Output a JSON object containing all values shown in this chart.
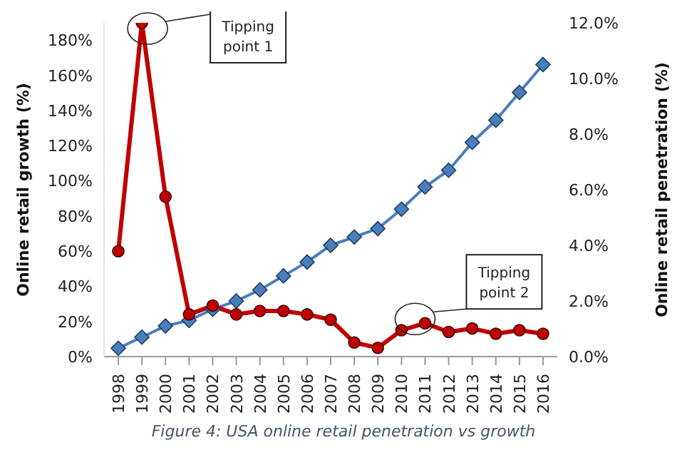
{
  "chart_data": {
    "type": "line",
    "ylabel": "Online  retail growth (%)",
    "y2label": "Online  retail penetration (%)",
    "categories": [
      "1998",
      "1999",
      "2000",
      "2001",
      "2002",
      "2003",
      "2004",
      "2005",
      "2006",
      "2007",
      "2008",
      "2009",
      "2010",
      "2011",
      "2012",
      "2013",
      "2014",
      "2015",
      "2016"
    ],
    "series": [
      {
        "color": "#c00000",
        "marker": "circle",
        "values": [
          60,
          190,
          91,
          24,
          29,
          24,
          26,
          26,
          24,
          21,
          8,
          5,
          15,
          19,
          14,
          16,
          13,
          15,
          13
        ]
      },
      {
        "color": "#4a7ebb",
        "marker": "diamond",
        "axis": "y2",
        "values": [
          0.3,
          0.7,
          1.1,
          1.3,
          1.7,
          2.0,
          2.4,
          2.9,
          3.4,
          4.0,
          4.3,
          4.6,
          5.3,
          6.1,
          6.7,
          7.7,
          8.5,
          9.5,
          10.5
        ]
      }
    ],
    "ylim": [
      0,
      190
    ],
    "yticks": [
      {
        "value": 0,
        "label": "0%"
      },
      {
        "value": 20,
        "label": "20%"
      },
      {
        "value": 40,
        "label": "40%"
      },
      {
        "value": 60,
        "label": "60%"
      },
      {
        "value": 80,
        "label": "80%"
      },
      {
        "value": 100,
        "label": "100%"
      },
      {
        "value": 120,
        "label": "120%"
      },
      {
        "value": 140,
        "label": "140%"
      },
      {
        "value": 160,
        "label": "160%"
      },
      {
        "value": 180,
        "label": "180%"
      }
    ],
    "y2lim": [
      0,
      12
    ],
    "y2ticks": [
      {
        "value": 0,
        "label": "0.0%"
      },
      {
        "value": 2,
        "label": "2.0%"
      },
      {
        "value": 4,
        "label": "4.0%"
      },
      {
        "value": 6,
        "label": "6.0%"
      },
      {
        "value": 8,
        "label": "8.0%"
      },
      {
        "value": 10,
        "label": "10.0%"
      },
      {
        "value": 12,
        "label": "12.0%"
      }
    ],
    "grid": false,
    "legend": false,
    "line_style": "solid",
    "annotations": [
      "Tipping point 1",
      "Tipping point 2",
      "Figure 4: USA online retail penetration vs growth"
    ]
  }
}
